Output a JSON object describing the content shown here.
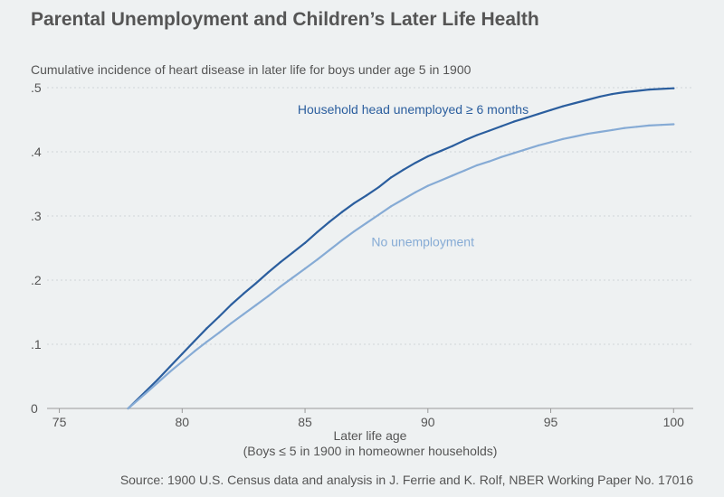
{
  "header": {
    "title": "Parental Unemployment and Children’s Later Life Health",
    "subtitle": "Cumulative incidence of heart disease in later life for boys under age 5 in 1900"
  },
  "footer": {
    "source": "Source: 1900 U.S. Census data and analysis in J. Ferrie and K. Rolf, NBER Working Paper No. 17016"
  },
  "colors": {
    "background": "#eef1f2",
    "grid": "#d0d5d8",
    "axis": "#999999",
    "text": "#555555",
    "series_unemployed": "#2b5e9e",
    "series_none": "#86abd5"
  },
  "chart_data": {
    "type": "line",
    "title": "Parental Unemployment and Children’s Later Life Health",
    "subtitle": "Cumulative incidence of heart disease in later life for boys under age 5 in 1900",
    "xlabel": "Later life age",
    "xlabel_note": "(Boys ≤ 5 in 1900 in homeowner households)",
    "ylabel": "",
    "xlim": [
      74.5,
      100.8
    ],
    "ylim": [
      0,
      0.5
    ],
    "xticks": [
      75,
      80,
      85,
      90,
      95,
      100
    ],
    "yticks": [
      0,
      0.1,
      0.2,
      0.3,
      0.4,
      0.5
    ],
    "ytick_labels": [
      "0",
      ".1",
      ".2",
      ".3",
      ".4",
      ".5"
    ],
    "grid": true,
    "legend": "inline labels",
    "series": [
      {
        "name": "Household head unemployed ≥ 6 months",
        "color": "#2b5e9e",
        "label_at": [
          84.7,
          0.459
        ],
        "x": [
          77.8,
          78.5,
          79.0,
          79.5,
          80.0,
          80.5,
          81.0,
          81.5,
          82.0,
          82.5,
          83.0,
          83.5,
          84.0,
          84.5,
          85.0,
          85.5,
          86.0,
          86.5,
          87.0,
          87.5,
          88.0,
          88.5,
          89.0,
          89.5,
          90.0,
          90.5,
          91.0,
          91.5,
          92.0,
          92.5,
          93.0,
          93.5,
          94.0,
          94.5,
          95.0,
          95.5,
          96.0,
          96.5,
          97.0,
          97.5,
          98.0,
          98.5,
          99.0,
          99.5,
          100.0
        ],
        "y": [
          0.0,
          0.026,
          0.045,
          0.065,
          0.085,
          0.105,
          0.125,
          0.143,
          0.162,
          0.179,
          0.195,
          0.212,
          0.228,
          0.243,
          0.258,
          0.275,
          0.291,
          0.306,
          0.32,
          0.332,
          0.345,
          0.36,
          0.372,
          0.383,
          0.393,
          0.401,
          0.409,
          0.418,
          0.426,
          0.433,
          0.44,
          0.447,
          0.453,
          0.459,
          0.465,
          0.471,
          0.476,
          0.481,
          0.486,
          0.49,
          0.493,
          0.495,
          0.497,
          0.498,
          0.499
        ]
      },
      {
        "name": "No unemployment",
        "color": "#86abd5",
        "label_at": [
          87.7,
          0.253
        ],
        "x": [
          77.8,
          78.5,
          79.0,
          79.5,
          80.0,
          80.5,
          81.0,
          81.5,
          82.0,
          82.5,
          83.0,
          83.5,
          84.0,
          84.5,
          85.0,
          85.5,
          86.0,
          86.5,
          87.0,
          87.5,
          88.0,
          88.5,
          89.0,
          89.5,
          90.0,
          90.5,
          91.0,
          91.5,
          92.0,
          92.5,
          93.0,
          93.5,
          94.0,
          94.5,
          95.0,
          95.5,
          96.0,
          96.5,
          97.0,
          97.5,
          98.0,
          98.5,
          99.0,
          99.5,
          100.0
        ],
        "y": [
          0.0,
          0.023,
          0.04,
          0.057,
          0.073,
          0.089,
          0.104,
          0.118,
          0.133,
          0.147,
          0.161,
          0.175,
          0.19,
          0.204,
          0.218,
          0.232,
          0.247,
          0.262,
          0.276,
          0.289,
          0.302,
          0.315,
          0.326,
          0.337,
          0.347,
          0.355,
          0.363,
          0.371,
          0.379,
          0.385,
          0.392,
          0.398,
          0.404,
          0.41,
          0.415,
          0.42,
          0.424,
          0.428,
          0.431,
          0.434,
          0.437,
          0.439,
          0.441,
          0.442,
          0.443
        ]
      }
    ]
  }
}
